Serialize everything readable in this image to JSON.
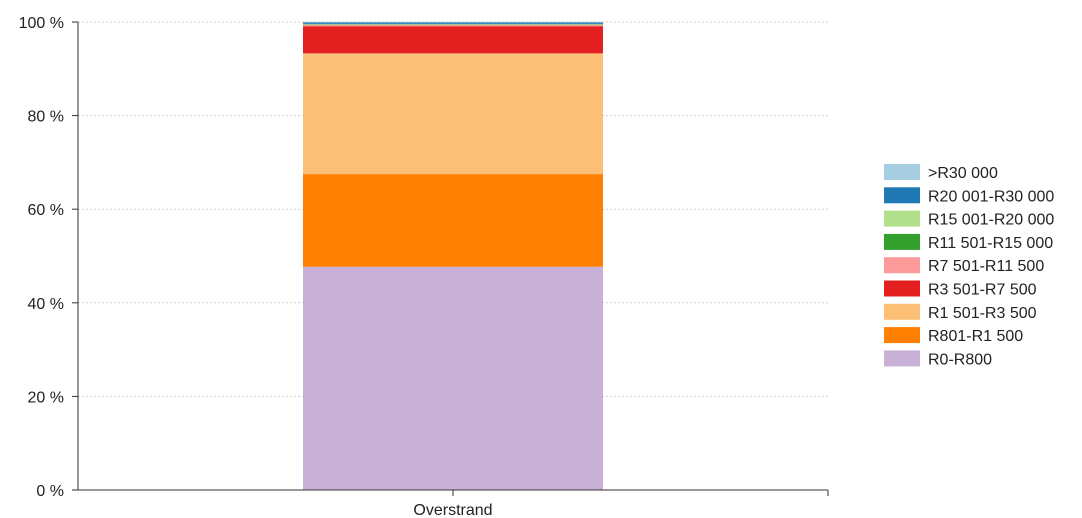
{
  "chart_data": {
    "type": "bar",
    "stacked": true,
    "categories": [
      "Overstrand"
    ],
    "ylim": [
      0,
      100
    ],
    "yticks": [
      0,
      20,
      40,
      60,
      80,
      100
    ],
    "ytick_labels": [
      "0 %",
      "20 %",
      "40 %",
      "60 %",
      "80 %",
      "100 %"
    ],
    "grid": true,
    "legend_position": "right",
    "series": [
      {
        "name": "R0-R800",
        "values": [
          47.7
        ],
        "color": "#c9b0d6"
      },
      {
        "name": "R801-R1 500",
        "values": [
          19.8
        ],
        "color": "#ff8000"
      },
      {
        "name": "R1 501-R3 500",
        "values": [
          25.8
        ],
        "color": "#fcbf75"
      },
      {
        "name": "R3 501-R7 500",
        "values": [
          5.8
        ],
        "color": "#e31f1f"
      },
      {
        "name": "R7 501-R11 500",
        "values": [
          0.3
        ],
        "color": "#fb9a99"
      },
      {
        "name": "R11 501-R15 000",
        "values": [
          0.1
        ],
        "color": "#33a02c"
      },
      {
        "name": "R15 001-R20 000",
        "values": [
          0.1
        ],
        "color": "#b2df8a"
      },
      {
        "name": "R20 001-R30 000",
        "values": [
          0.3
        ],
        "color": "#1f78b4"
      },
      {
        "name": ">R30 000",
        "values": [
          0.1
        ],
        "color": "#a6cee3"
      }
    ]
  }
}
